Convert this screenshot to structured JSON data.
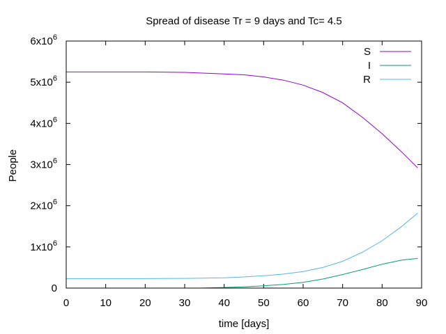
{
  "chart_data": {
    "type": "line",
    "title": "Spread of disease Tr = 9 days and Tc= 4.5",
    "xlabel": "time [days]",
    "ylabel": "People",
    "xlim": [
      0,
      90
    ],
    "ylim": [
      0,
      6000000
    ],
    "x_ticks": [
      0,
      10,
      20,
      30,
      40,
      50,
      60,
      70,
      80,
      90
    ],
    "x_tick_labels": [
      "0",
      "10",
      "20",
      "30",
      "40",
      "50",
      "60",
      "70",
      "80",
      "90"
    ],
    "y_ticks": [
      {
        "value": 0,
        "base": "0",
        "exp": ""
      },
      {
        "value": 1000000,
        "base": "1x10",
        "exp": "6"
      },
      {
        "value": 2000000,
        "base": "2x10",
        "exp": "6"
      },
      {
        "value": 3000000,
        "base": "3x10",
        "exp": "6"
      },
      {
        "value": 4000000,
        "base": "4x10",
        "exp": "6"
      },
      {
        "value": 5000000,
        "base": "5x10",
        "exp": "6"
      },
      {
        "value": 6000000,
        "base": "6x10",
        "exp": "6"
      }
    ],
    "grid": false,
    "legend_position": "top-right",
    "series": [
      {
        "name": "S",
        "color": "#9400d3",
        "x": [
          0,
          10,
          20,
          30,
          40,
          45,
          50,
          55,
          60,
          65,
          70,
          75,
          80,
          85,
          89
        ],
        "values": [
          5250000,
          5250000,
          5250000,
          5240000,
          5200000,
          5180000,
          5130000,
          5050000,
          4930000,
          4750000,
          4500000,
          4150000,
          3750000,
          3300000,
          2920000
        ]
      },
      {
        "name": "I",
        "color": "#009e73",
        "x": [
          34,
          40,
          45,
          50,
          55,
          60,
          65,
          70,
          75,
          80,
          85,
          89
        ],
        "values": [
          0,
          15000,
          30000,
          55000,
          90000,
          140000,
          220000,
          330000,
          450000,
          580000,
          680000,
          720000
        ]
      },
      {
        "name": "R",
        "color": "#56b4e9",
        "x": [
          0,
          10,
          20,
          30,
          40,
          45,
          50,
          55,
          60,
          65,
          70,
          75,
          80,
          85,
          89
        ],
        "values": [
          230000,
          230000,
          230000,
          235000,
          250000,
          270000,
          300000,
          340000,
          400000,
          500000,
          650000,
          870000,
          1150000,
          1500000,
          1820000
        ]
      }
    ]
  }
}
